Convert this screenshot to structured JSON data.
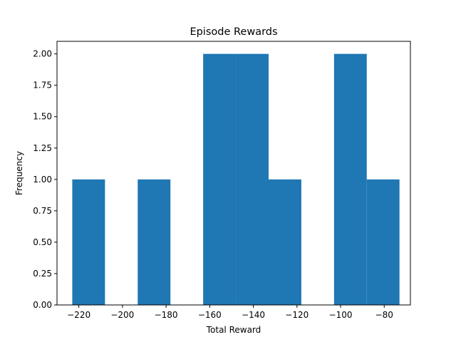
{
  "chart_data": {
    "type": "bar",
    "title": "Episode Rewards",
    "xlabel": "Total Reward",
    "ylabel": "Frequency",
    "xlim": [
      -230,
      -68
    ],
    "ylim": [
      0,
      2.1
    ],
    "grid": false,
    "bar_color": "#1f77b4",
    "bins": [
      {
        "x0": -223,
        "x1": -208,
        "count": 1
      },
      {
        "x0": -208,
        "x1": -193,
        "count": 0
      },
      {
        "x0": -193,
        "x1": -178,
        "count": 1
      },
      {
        "x0": -178,
        "x1": -163,
        "count": 0
      },
      {
        "x0": -163,
        "x1": -148,
        "count": 2
      },
      {
        "x0": -148,
        "x1": -133,
        "count": 2
      },
      {
        "x0": -133,
        "x1": -118,
        "count": 1
      },
      {
        "x0": -118,
        "x1": -103,
        "count": 0
      },
      {
        "x0": -103,
        "x1": -88,
        "count": 2
      },
      {
        "x0": -88,
        "x1": -73,
        "count": 1
      }
    ],
    "x_ticks": [
      {
        "value": -220,
        "label": "−220"
      },
      {
        "value": -200,
        "label": "−200"
      },
      {
        "value": -180,
        "label": "−180"
      },
      {
        "value": -160,
        "label": "−160"
      },
      {
        "value": -140,
        "label": "−140"
      },
      {
        "value": -120,
        "label": "−120"
      },
      {
        "value": -100,
        "label": "−100"
      },
      {
        "value": -80,
        "label": "−80"
      }
    ],
    "y_ticks": [
      {
        "value": 0,
        "label": "0.00"
      },
      {
        "value": 0.25,
        "label": "0.25"
      },
      {
        "value": 0.5,
        "label": "0.50"
      },
      {
        "value": 0.75,
        "label": "0.75"
      },
      {
        "value": 1.0,
        "label": "1.00"
      },
      {
        "value": 1.25,
        "label": "1.25"
      },
      {
        "value": 1.5,
        "label": "1.50"
      },
      {
        "value": 1.75,
        "label": "1.75"
      },
      {
        "value": 2.0,
        "label": "2.00"
      }
    ]
  }
}
